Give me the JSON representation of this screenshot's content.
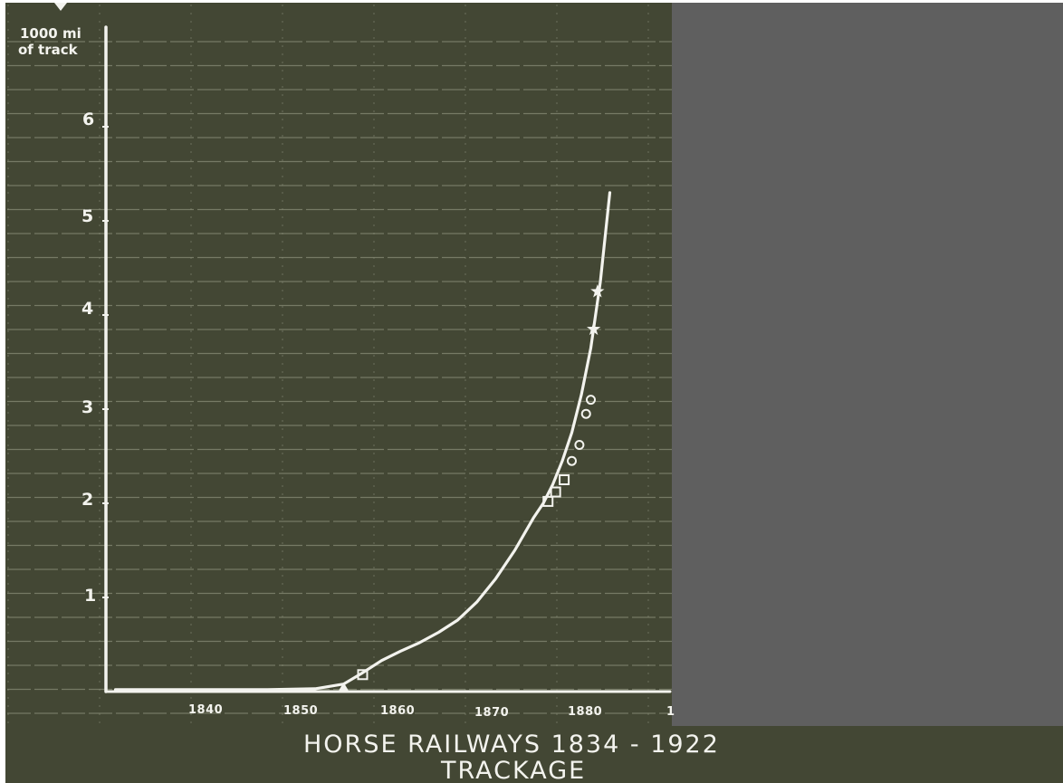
{
  "chart_data": {
    "type": "line",
    "title": "HORSE RAILWAYS 1834 - 1922",
    "subtitle": "TRACKAGE",
    "ylabel": "1000 mi of track",
    "ylabel_lines": [
      "1000 mi",
      "of track"
    ],
    "xlabel": "",
    "x_ticks": [
      "1840",
      "1850",
      "1860",
      "1870",
      "1880",
      "1"
    ],
    "y_ticks": [
      "1",
      "2",
      "3",
      "4",
      "5",
      "6"
    ],
    "xlim": [
      1833,
      1886
    ],
    "ylim": [
      0,
      7
    ],
    "grid": true,
    "curve": {
      "x": [
        1834,
        1840,
        1850,
        1855,
        1858,
        1860,
        1862,
        1864,
        1866,
        1868,
        1870,
        1872,
        1874,
        1876,
        1878,
        1879,
        1880,
        1881,
        1882,
        1883,
        1884,
        1885,
        1886
      ],
      "y": [
        0.02,
        0.02,
        0.02,
        0.03,
        0.08,
        0.2,
        0.33,
        0.43,
        0.52,
        0.63,
        0.76,
        0.95,
        1.2,
        1.5,
        1.85,
        2.0,
        2.2,
        2.45,
        2.75,
        3.15,
        3.65,
        4.35,
        5.3
      ]
    },
    "markers": [
      {
        "shape": "triangle",
        "points": [
          {
            "x": 1858,
            "y": 0.04
          }
        ]
      },
      {
        "shape": "square",
        "points": [
          {
            "x": 1860,
            "y": 0.18
          },
          {
            "x": 1879.5,
            "y": 2.02
          },
          {
            "x": 1880.3,
            "y": 2.12
          },
          {
            "x": 1881.2,
            "y": 2.25
          }
        ]
      },
      {
        "shape": "circle",
        "points": [
          {
            "x": 1882,
            "y": 2.45
          },
          {
            "x": 1882.8,
            "y": 2.62
          },
          {
            "x": 1883.5,
            "y": 2.95
          },
          {
            "x": 1884,
            "y": 3.1
          }
        ]
      },
      {
        "shape": "star",
        "points": [
          {
            "x": 1884.3,
            "y": 3.85
          },
          {
            "x": 1884.7,
            "y": 4.25
          }
        ]
      }
    ],
    "colors": {
      "board": "#434734",
      "grid": "#878b76",
      "ink": "#f3f3ee",
      "masked_area": "#5f5f5f",
      "frame": "#ffffff"
    }
  }
}
